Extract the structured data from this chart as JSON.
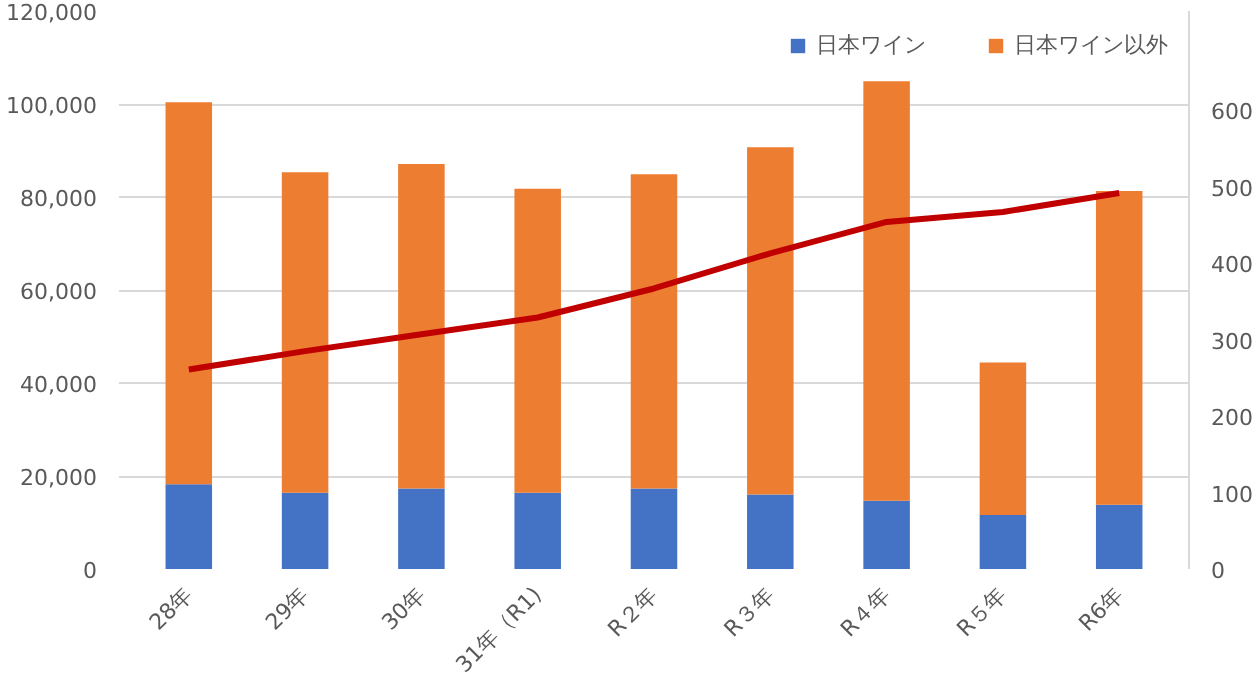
{
  "chart_data": {
    "type": "bar",
    "stacked": true,
    "categories": [
      "28年",
      "29年",
      "30年",
      "31年（R1)",
      "R２年",
      "R３年",
      "R４年",
      "R５年",
      "R6年"
    ],
    "series": [
      {
        "name": "日本ワイン",
        "color": "#4472c4",
        "values": [
          18200,
          16400,
          17300,
          16400,
          17300,
          16000,
          14700,
          11600,
          13800
        ]
      },
      {
        "name": "日本ワイン以外",
        "color": "#ed7d31",
        "values": [
          82200,
          68900,
          69800,
          65400,
          67600,
          74700,
          90200,
          32800,
          67500
        ]
      },
      {
        "type": "line",
        "axis": "y2",
        "color": "#c00000",
        "values": [
          261,
          285,
          307,
          329,
          367,
          413,
          454,
          467,
          492
        ]
      }
    ],
    "ylim": [
      0,
      120000
    ],
    "yticks": [
      {
        "value": 0,
        "label": "0"
      },
      {
        "value": 20000,
        "label": "20,000"
      },
      {
        "value": 40000,
        "label": "40,000"
      },
      {
        "value": 60000,
        "label": "60,000"
      },
      {
        "value": 80000,
        "label": "80,000"
      },
      {
        "value": 100000,
        "label": "100,000"
      },
      {
        "value": 120000,
        "label": "120,000"
      }
    ],
    "y2lim": [
      0,
      730
    ],
    "y2ticks": [
      0,
      100,
      200,
      300,
      400,
      500,
      600
    ],
    "grid": "y",
    "legend": "top right"
  }
}
